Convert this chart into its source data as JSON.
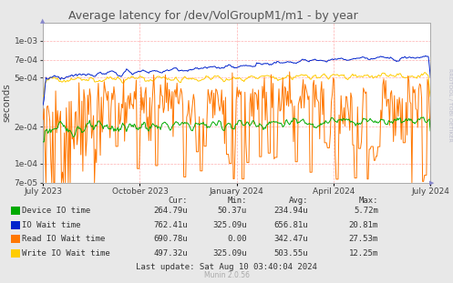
{
  "title": "Average latency for /dev/VolGroupM1/m1 - by year",
  "ylabel": "seconds",
  "background_color": "#e8e8e8",
  "plot_background": "#ffffff",
  "grid_color": "#ffb0b0",
  "ylim_min": 7e-05,
  "ylim_max": 0.0014,
  "yticks": [
    7e-05,
    0.0001,
    0.0002,
    0.0005,
    0.0007,
    0.001
  ],
  "ytick_labels": [
    "7e-05",
    "1e-04",
    "2e-04",
    "5e-04",
    "7e-04",
    "1e-03"
  ],
  "xtick_labels": [
    "July 2023",
    "October 2023",
    "January 2024",
    "April 2024",
    "July 2024"
  ],
  "colors": {
    "device_io": "#00aa00",
    "io_wait": "#0022cc",
    "read_io_wait": "#ff7700",
    "write_io_wait": "#ffcc00"
  },
  "legend": [
    {
      "label": "Device IO time",
      "color": "#00aa00",
      "cur": "264.79u",
      "min": "50.37u",
      "avg": "234.94u",
      "max": "5.72m"
    },
    {
      "label": "IO Wait time",
      "color": "#0022cc",
      "cur": "762.41u",
      "min": "325.09u",
      "avg": "656.81u",
      "max": "20.81m"
    },
    {
      "label": "Read IO Wait time",
      "color": "#ff7700",
      "cur": "690.78u",
      "min": "0.00",
      "avg": "342.47u",
      "max": "27.53m"
    },
    {
      "label": "Write IO Wait time",
      "color": "#ffcc00",
      "cur": "497.32u",
      "min": "325.09u",
      "avg": "503.55u",
      "max": "12.25m"
    }
  ],
  "last_update": "Last update: Sat Aug 10 03:40:04 2024",
  "rrdtool_label": "RRDTOOL / TOBI OETIKER",
  "munin_label": "Munin 2.0.56",
  "title_color": "#555555"
}
